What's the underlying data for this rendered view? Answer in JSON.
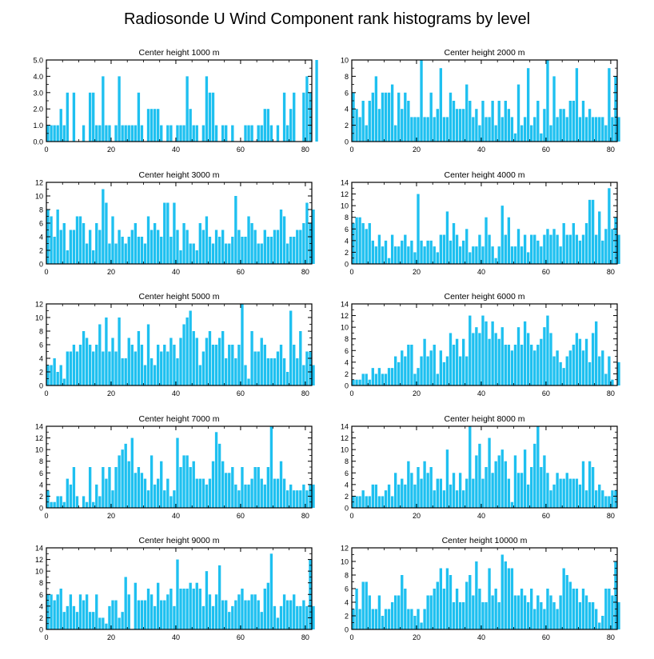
{
  "title": "Radiosonde U Wind Component rank histograms by level",
  "bar_color": "#1ec0f0",
  "chart_data": [
    {
      "type": "bar",
      "title": "Center height 1000 m",
      "xlim": [
        0,
        82
      ],
      "ylim": [
        0,
        5
      ],
      "yticks": [
        "0.0",
        "1.0",
        "2.0",
        "3.0",
        "4.0",
        "5.0"
      ],
      "xticks": [
        "0",
        "20",
        "40",
        "60",
        "80"
      ],
      "values": [
        1,
        1,
        1,
        1,
        2,
        1,
        3,
        0,
        3,
        0,
        0,
        1,
        0,
        3,
        3,
        1,
        1,
        4,
        1,
        1,
        0,
        1,
        4,
        1,
        1,
        1,
        1,
        1,
        3,
        1,
        0,
        2,
        2,
        2,
        2,
        1,
        0,
        1,
        1,
        0,
        1,
        1,
        1,
        4,
        2,
        1,
        1,
        0,
        1,
        4,
        3,
        3,
        1,
        0,
        1,
        1,
        0,
        1,
        0,
        0,
        0,
        1,
        1,
        1,
        0,
        1,
        1,
        2,
        2,
        1,
        0,
        1,
        0,
        3,
        1,
        2,
        3,
        0,
        0,
        3,
        4,
        3,
        0,
        5
      ]
    },
    {
      "type": "bar",
      "title": "Center height 2000 m",
      "xlim": [
        0,
        82
      ],
      "ylim": [
        0,
        10
      ],
      "yticks": [
        "0",
        "2",
        "4",
        "6",
        "8",
        "10"
      ],
      "xticks": [
        "0",
        "20",
        "40",
        "60",
        "80"
      ],
      "values": [
        6,
        4,
        3,
        5,
        2,
        5,
        6,
        8,
        4,
        6,
        6,
        6,
        7,
        2,
        6,
        4,
        6,
        5,
        3,
        3,
        3,
        10,
        3,
        3,
        6,
        3,
        4,
        9,
        3,
        3,
        6,
        5,
        4,
        4,
        4,
        7,
        5,
        3,
        4,
        2,
        5,
        3,
        3,
        5,
        2,
        5,
        3,
        5,
        4,
        3,
        1,
        7,
        2,
        3,
        9,
        2,
        3,
        5,
        1,
        4,
        10,
        2,
        8,
        3,
        4,
        4,
        3,
        5,
        5,
        9,
        3,
        5,
        3,
        4,
        3,
        3,
        3,
        3,
        2,
        9,
        3,
        8,
        3
      ]
    },
    {
      "type": "bar",
      "title": "Center height 3000 m",
      "xlim": [
        0,
        82
      ],
      "ylim": [
        0,
        12
      ],
      "yticks": [
        "0",
        "2",
        "4",
        "6",
        "8",
        "10",
        "12"
      ],
      "xticks": [
        "0",
        "20",
        "40",
        "60",
        "80"
      ],
      "values": [
        8,
        7,
        4,
        8,
        5,
        6,
        2,
        5,
        5,
        7,
        7,
        6,
        3,
        5,
        2,
        6,
        5,
        11,
        9,
        3,
        7,
        3,
        5,
        4,
        3,
        4,
        5,
        6,
        4,
        4,
        3,
        7,
        5,
        6,
        5,
        4,
        9,
        9,
        4,
        9,
        5,
        2,
        6,
        5,
        3,
        3,
        2,
        6,
        5,
        7,
        4,
        3,
        5,
        4,
        5,
        3,
        3,
        4,
        10,
        5,
        4,
        4,
        7,
        6,
        5,
        3,
        3,
        5,
        4,
        4,
        5,
        5,
        8,
        7,
        3,
        4,
        4,
        5,
        5,
        6,
        9,
        6,
        8
      ]
    },
    {
      "type": "bar",
      "title": "Center height 4000 m",
      "xlim": [
        0,
        82
      ],
      "ylim": [
        0,
        14
      ],
      "yticks": [
        "0",
        "2",
        "4",
        "6",
        "8",
        "10",
        "12",
        "14"
      ],
      "xticks": [
        "0",
        "20",
        "40",
        "60",
        "80"
      ],
      "values": [
        7,
        8,
        8,
        7,
        6,
        7,
        4,
        3,
        5,
        3,
        4,
        1,
        5,
        3,
        3,
        4,
        5,
        3,
        4,
        2,
        12,
        4,
        3,
        4,
        4,
        3,
        2,
        5,
        5,
        9,
        4,
        7,
        5,
        3,
        4,
        6,
        2,
        3,
        3,
        5,
        3,
        8,
        5,
        3,
        1,
        3,
        10,
        5,
        8,
        3,
        3,
        6,
        3,
        5,
        2,
        5,
        5,
        4,
        3,
        5,
        6,
        5,
        6,
        5,
        3,
        7,
        5,
        5,
        7,
        5,
        4,
        5,
        7,
        11,
        11,
        5,
        9,
        4,
        6,
        13,
        6,
        8,
        5
      ]
    },
    {
      "type": "bar",
      "title": "Center height 5000 m",
      "xlim": [
        0,
        82
      ],
      "ylim": [
        0,
        12
      ],
      "yticks": [
        "0",
        "2",
        "4",
        "6",
        "8",
        "10",
        "12"
      ],
      "xticks": [
        "0",
        "20",
        "40",
        "60",
        "80"
      ],
      "values": [
        3,
        3,
        4,
        2,
        3,
        1,
        5,
        5,
        6,
        5,
        6,
        8,
        7,
        6,
        5,
        6,
        9,
        5,
        10,
        5,
        7,
        5,
        10,
        4,
        4,
        7,
        6,
        5,
        8,
        6,
        3,
        9,
        4,
        3,
        6,
        5,
        6,
        5,
        7,
        6,
        4,
        7,
        9,
        10,
        11,
        8,
        7,
        3,
        5,
        7,
        8,
        6,
        6,
        7,
        8,
        4,
        6,
        6,
        4,
        6,
        12,
        3,
        1,
        8,
        5,
        5,
        7,
        6,
        4,
        4,
        4,
        5,
        6,
        4,
        2,
        11,
        6,
        4,
        8,
        3,
        5,
        5,
        3
      ]
    },
    {
      "type": "bar",
      "title": "Center height 6000 m",
      "xlim": [
        0,
        82
      ],
      "ylim": [
        0,
        14
      ],
      "yticks": [
        "0",
        "2",
        "4",
        "6",
        "8",
        "10",
        "12",
        "14"
      ],
      "xticks": [
        "0",
        "20",
        "40",
        "60",
        "80"
      ],
      "values": [
        1,
        1,
        1,
        2,
        2,
        1,
        3,
        2,
        3,
        2,
        2,
        3,
        3,
        5,
        4,
        6,
        5,
        7,
        7,
        2,
        3,
        5,
        8,
        5,
        6,
        7,
        2,
        6,
        4,
        5,
        9,
        7,
        8,
        5,
        8,
        5,
        12,
        9,
        10,
        9,
        12,
        11,
        8,
        11,
        9,
        8,
        10,
        7,
        7,
        6,
        7,
        10,
        7,
        11,
        9,
        7,
        6,
        7,
        8,
        10,
        12,
        9,
        5,
        6,
        4,
        3,
        5,
        6,
        7,
        9,
        8,
        6,
        8,
        4,
        9,
        11,
        5,
        6,
        2,
        5,
        1,
        0,
        4
      ]
    },
    {
      "type": "bar",
      "title": "Center height 7000 m",
      "xlim": [
        0,
        82
      ],
      "ylim": [
        0,
        14
      ],
      "yticks": [
        "0",
        "2",
        "4",
        "6",
        "8",
        "10",
        "12",
        "14"
      ],
      "xticks": [
        "0",
        "20",
        "40",
        "60",
        "80"
      ],
      "values": [
        3,
        1,
        1,
        2,
        2,
        1,
        5,
        4,
        7,
        2,
        0,
        2,
        1,
        7,
        1,
        4,
        2,
        7,
        5,
        7,
        3,
        7,
        9,
        10,
        11,
        8,
        12,
        6,
        7,
        6,
        5,
        3,
        9,
        4,
        5,
        8,
        3,
        5,
        2,
        3,
        12,
        7,
        9,
        9,
        7,
        8,
        5,
        5,
        5,
        4,
        5,
        8,
        13,
        11,
        8,
        6,
        6,
        7,
        4,
        3,
        7,
        4,
        4,
        5,
        7,
        7,
        5,
        4,
        7,
        14,
        5,
        5,
        8,
        5,
        3,
        4,
        3,
        3,
        3,
        4,
        3,
        4,
        4
      ]
    },
    {
      "type": "bar",
      "title": "Center height 8000 m",
      "xlim": [
        0,
        82
      ],
      "ylim": [
        0,
        14
      ],
      "yticks": [
        "0",
        "2",
        "4",
        "6",
        "8",
        "10",
        "12",
        "14"
      ],
      "xticks": [
        "0",
        "20",
        "40",
        "60",
        "80"
      ],
      "values": [
        2,
        2,
        2,
        3,
        2,
        2,
        4,
        4,
        2,
        2,
        3,
        4,
        2,
        6,
        4,
        5,
        4,
        8,
        6,
        4,
        7,
        5,
        8,
        6,
        7,
        3,
        5,
        5,
        3,
        10,
        4,
        6,
        3,
        6,
        3,
        5,
        14,
        5,
        9,
        11,
        5,
        7,
        12,
        6,
        8,
        9,
        10,
        8,
        5,
        1,
        9,
        6,
        6,
        10,
        4,
        7,
        11,
        14,
        7,
        9,
        6,
        3,
        4,
        6,
        5,
        5,
        6,
        5,
        5,
        5,
        4,
        8,
        3,
        8,
        7,
        3,
        4,
        3,
        2,
        2,
        3,
        3,
        0
      ]
    },
    {
      "type": "bar",
      "title": "Center height 9000 m",
      "xlim": [
        0,
        82
      ],
      "ylim": [
        0,
        14
      ],
      "yticks": [
        "0",
        "2",
        "4",
        "6",
        "8",
        "10",
        "12",
        "14"
      ],
      "xticks": [
        "0",
        "20",
        "40",
        "60",
        "80"
      ],
      "values": [
        6,
        6,
        5,
        6,
        7,
        3,
        4,
        6,
        4,
        3,
        6,
        5,
        6,
        3,
        3,
        6,
        2,
        2,
        1,
        4,
        5,
        5,
        2,
        3,
        9,
        6,
        0,
        8,
        5,
        5,
        5,
        7,
        6,
        4,
        8,
        5,
        5,
        6,
        7,
        4,
        12,
        7,
        7,
        7,
        8,
        7,
        8,
        7,
        4,
        10,
        6,
        4,
        6,
        11,
        5,
        5,
        3,
        4,
        5,
        6,
        7,
        5,
        5,
        6,
        6,
        5,
        3,
        7,
        8,
        13,
        4,
        2,
        4,
        6,
        5,
        5,
        6,
        4,
        4,
        5,
        4,
        12,
        4
      ]
    },
    {
      "type": "bar",
      "title": "Center height 10000 m",
      "xlim": [
        0,
        82
      ],
      "ylim": [
        0,
        12
      ],
      "yticks": [
        "0",
        "2",
        "4",
        "6",
        "8",
        "10",
        "12"
      ],
      "xticks": [
        "0",
        "20",
        "40",
        "60",
        "80"
      ],
      "values": [
        3,
        6,
        3,
        7,
        7,
        5,
        3,
        3,
        5,
        2,
        3,
        3,
        4,
        5,
        5,
        8,
        6,
        3,
        3,
        2,
        3,
        1,
        3,
        5,
        5,
        6,
        7,
        9,
        6,
        9,
        8,
        4,
        6,
        4,
        4,
        7,
        8,
        5,
        10,
        6,
        4,
        4,
        9,
        5,
        6,
        4,
        11,
        10,
        9,
        9,
        5,
        5,
        6,
        5,
        4,
        6,
        3,
        5,
        4,
        3,
        6,
        5,
        4,
        3,
        5,
        9,
        8,
        7,
        6,
        6,
        4,
        6,
        5,
        4,
        4,
        3,
        1,
        2,
        6,
        6,
        5,
        10,
        4
      ]
    }
  ]
}
